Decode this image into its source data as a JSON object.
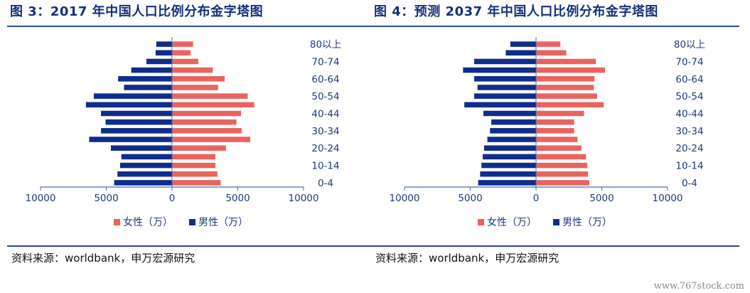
{
  "colors": {
    "female": "#e8645f",
    "male": "#0f2d8c",
    "title": "#15317a",
    "rule": "#2a4d9a"
  },
  "source_text": "资料来源：worldbank，申万宏源研究",
  "watermark": "www.767stock.com",
  "chart_data": [
    {
      "type": "bar",
      "orientation": "horizontal-pyramid",
      "title": "图 3：2017 年中国人口比例分布金字塔图",
      "categories": [
        "0-4",
        "5-9",
        "10-14",
        "15-19",
        "20-24",
        "25-29",
        "30-34",
        "35-39",
        "40-44",
        "45-49",
        "50-54",
        "55-59",
        "60-64",
        "65-69",
        "70-74",
        "75-79",
        "80以上"
      ],
      "category_labels_shown": [
        "0-4",
        "10-14",
        "20-24",
        "30-34",
        "40-44",
        "50-54",
        "60-64",
        "70-74",
        "80以上"
      ],
      "series": [
        {
          "name": "女性（万）",
          "values": [
            3700,
            3450,
            3300,
            3300,
            4100,
            5950,
            5300,
            4900,
            5250,
            6250,
            5750,
            3500,
            4000,
            3100,
            2000,
            1400,
            1600
          ]
        },
        {
          "name": "男性（万）",
          "values": [
            4400,
            4150,
            3950,
            3850,
            4650,
            6300,
            5400,
            5050,
            5400,
            6550,
            5950,
            3650,
            4100,
            3100,
            1950,
            1250,
            1200
          ]
        }
      ],
      "xlim": [
        -10000,
        10000
      ],
      "xticks": [
        10000,
        5000,
        0,
        5000,
        10000
      ],
      "legend_position": "bottom"
    },
    {
      "type": "bar",
      "orientation": "horizontal-pyramid",
      "title": "图 4：预测 2037 年中国人口比例分布金字塔图",
      "categories": [
        "0-4",
        "5-9",
        "10-14",
        "15-19",
        "20-24",
        "25-29",
        "30-34",
        "35-39",
        "40-44",
        "45-49",
        "50-54",
        "55-59",
        "60-64",
        "65-69",
        "70-74",
        "75-79",
        "80以上"
      ],
      "category_labels_shown": [
        "0-4",
        "10-14",
        "20-24",
        "30-34",
        "40-44",
        "50-54",
        "60-64",
        "70-74",
        "80以上"
      ],
      "series": [
        {
          "name": "女性（万）",
          "values": [
            4050,
            3950,
            3900,
            3800,
            3450,
            3150,
            2900,
            2900,
            3650,
            5150,
            4650,
            4400,
            4450,
            5250,
            4550,
            2300,
            1850
          ]
        },
        {
          "name": "男性（万）",
          "values": [
            4400,
            4250,
            4150,
            4050,
            3950,
            3700,
            3500,
            3400,
            4000,
            5450,
            4700,
            4450,
            4700,
            5550,
            4700,
            2300,
            1950
          ]
        }
      ],
      "xlim": [
        -10000,
        10000
      ],
      "xticks": [
        10000,
        5000,
        0,
        5000,
        10000
      ],
      "legend_position": "bottom"
    }
  ]
}
